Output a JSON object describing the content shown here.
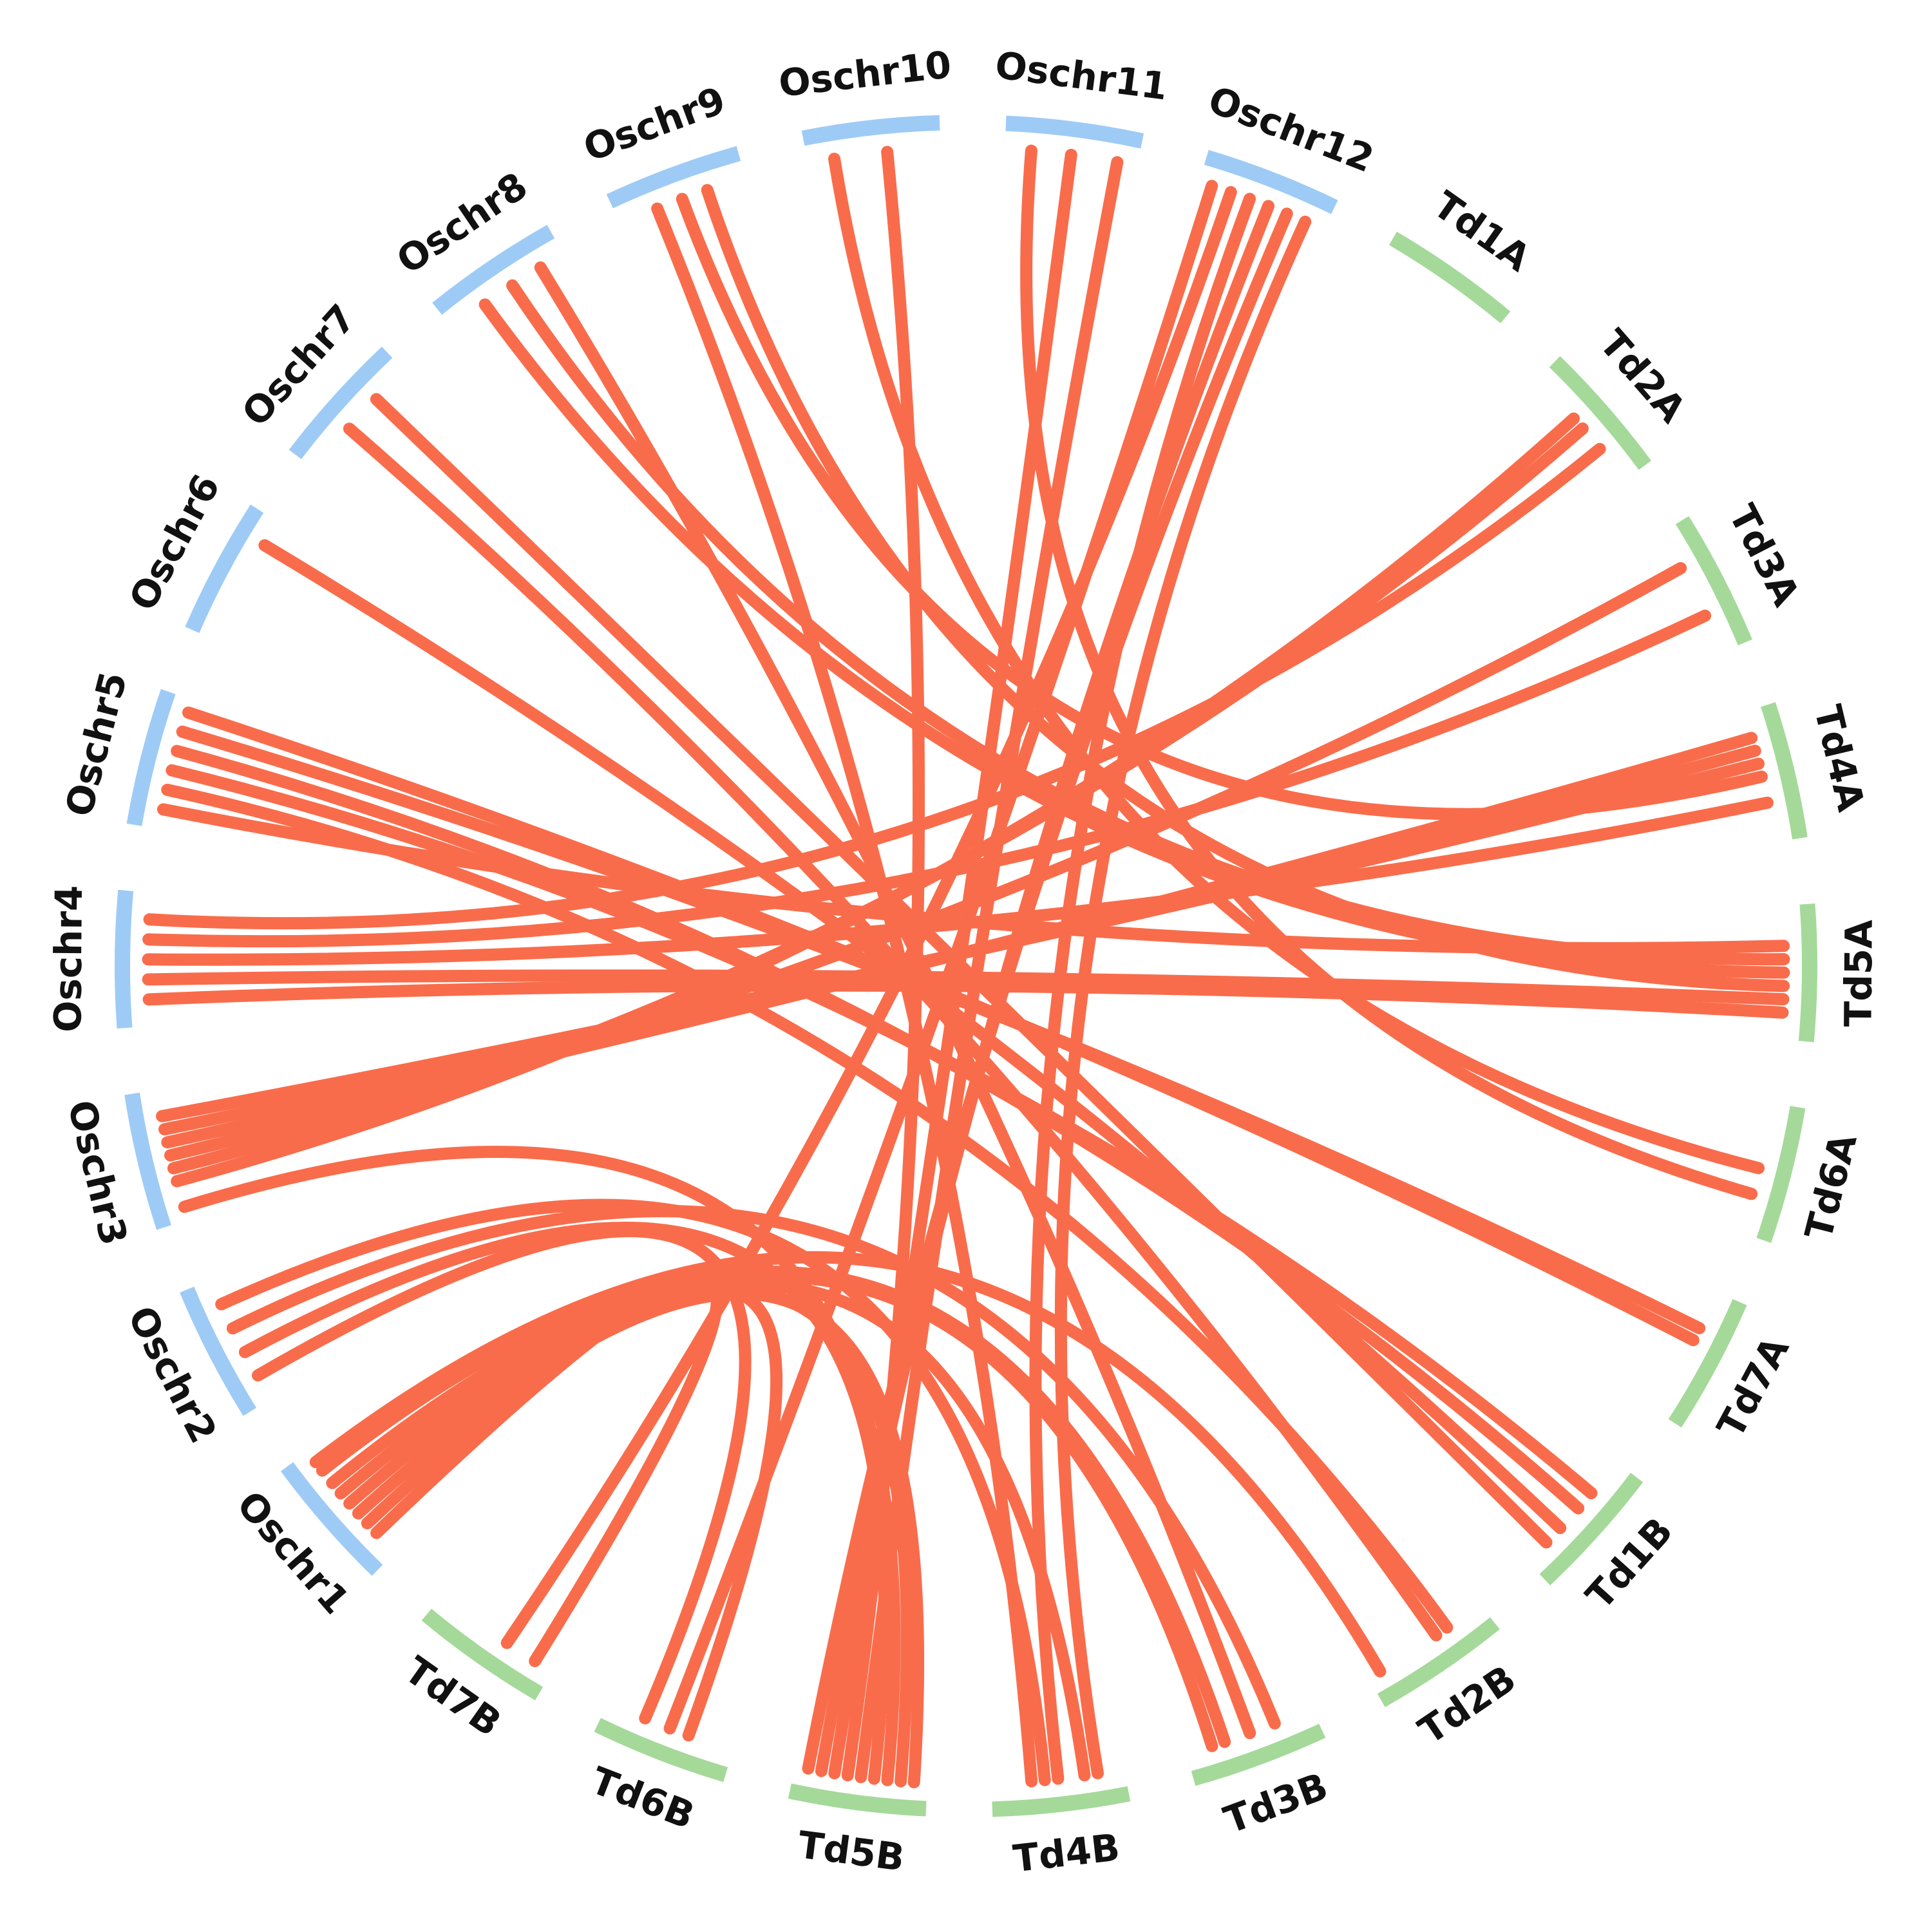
{
  "chart_data": {
    "type": "chord",
    "title": "",
    "colors": {
      "rice": "#9ecbf6",
      "wheat": "#a5d99a",
      "link": "#f96c4b"
    },
    "chromosomes": [
      {
        "name": "Oschr1",
        "group": "rice"
      },
      {
        "name": "Oschr2",
        "group": "rice"
      },
      {
        "name": "Oschr3",
        "group": "rice"
      },
      {
        "name": "Oschr4",
        "group": "rice"
      },
      {
        "name": "Oschr5",
        "group": "rice"
      },
      {
        "name": "Oschr6",
        "group": "rice"
      },
      {
        "name": "Oschr7",
        "group": "rice"
      },
      {
        "name": "Oschr8",
        "group": "rice"
      },
      {
        "name": "Oschr9",
        "group": "rice"
      },
      {
        "name": "Oschr10",
        "group": "rice"
      },
      {
        "name": "Oschr11",
        "group": "rice"
      },
      {
        "name": "Oschr12",
        "group": "rice"
      },
      {
        "name": "Td1A",
        "group": "wheat"
      },
      {
        "name": "Td2A",
        "group": "wheat"
      },
      {
        "name": "Td3A",
        "group": "wheat"
      },
      {
        "name": "Td4A",
        "group": "wheat"
      },
      {
        "name": "Td5A",
        "group": "wheat"
      },
      {
        "name": "Td6A",
        "group": "wheat"
      },
      {
        "name": "Td7A",
        "group": "wheat"
      },
      {
        "name": "Td1B",
        "group": "wheat"
      },
      {
        "name": "Td2B",
        "group": "wheat"
      },
      {
        "name": "Td3B",
        "group": "wheat"
      },
      {
        "name": "Td4B",
        "group": "wheat"
      },
      {
        "name": "Td5B",
        "group": "wheat"
      },
      {
        "name": "Td6B",
        "group": "wheat"
      },
      {
        "name": "Td7B",
        "group": "wheat"
      }
    ],
    "links": [
      [
        "Oschr1",
        0.2,
        "Td7B",
        0.15
      ],
      [
        "Oschr1",
        0.3,
        "Td6B",
        0.35
      ],
      [
        "Oschr1",
        0.4,
        "Td5B",
        0.1
      ],
      [
        "Oschr1",
        0.5,
        "Td5B",
        0.2
      ],
      [
        "Oschr1",
        0.6,
        "Td4B",
        0.3
      ],
      [
        "Oschr1",
        0.7,
        "Td3B",
        0.8
      ],
      [
        "Oschr1",
        0.82,
        "Td3B",
        0.7
      ],
      [
        "Oschr1",
        0.9,
        "Td2B",
        0.9
      ],
      [
        "Oschr2",
        0.2,
        "Td6B",
        0.7
      ],
      [
        "Oschr2",
        0.4,
        "Td5B",
        0.4
      ],
      [
        "Oschr2",
        0.6,
        "Td3B",
        0.3
      ],
      [
        "Oschr2",
        0.8,
        "Td4B",
        0.6
      ],
      [
        "Oschr3",
        0.1,
        "Td5B",
        0.3
      ],
      [
        "Oschr3",
        0.3,
        "Td2A",
        0.4
      ],
      [
        "Oschr3",
        0.4,
        "Td2A",
        0.5
      ],
      [
        "Oschr3",
        0.5,
        "Td3A",
        0.3
      ],
      [
        "Oschr3",
        0.6,
        "Td4A",
        0.2
      ],
      [
        "Oschr3",
        0.7,
        "Td4A",
        0.3
      ],
      [
        "Oschr3",
        0.8,
        "Td4A",
        0.4
      ],
      [
        "Oschr4",
        0.2,
        "Td5A",
        0.8
      ],
      [
        "Oschr4",
        0.35,
        "Td5A",
        0.7
      ],
      [
        "Oschr4",
        0.5,
        "Td4A",
        0.7
      ],
      [
        "Oschr4",
        0.65,
        "Td3A",
        0.7
      ],
      [
        "Oschr4",
        0.8,
        "Td2A",
        0.7
      ],
      [
        "Oschr5",
        0.15,
        "Td5A",
        0.3
      ],
      [
        "Oschr5",
        0.3,
        "Td2B",
        0.3
      ],
      [
        "Oschr5",
        0.45,
        "Td1B",
        0.3
      ],
      [
        "Oschr5",
        0.6,
        "Td1B",
        0.45
      ],
      [
        "Oschr5",
        0.75,
        "Td7A",
        0.3
      ],
      [
        "Oschr5",
        0.9,
        "Td7A",
        0.4
      ],
      [
        "Oschr6",
        0.8,
        "Td1B",
        0.65
      ],
      [
        "Oschr7",
        0.4,
        "Td2B",
        0.4
      ],
      [
        "Oschr7",
        0.7,
        "Td1B",
        0.8
      ],
      [
        "Oschr8",
        0.3,
        "Td5A",
        0.5
      ],
      [
        "Oschr8",
        0.55,
        "Td5A",
        0.4
      ],
      [
        "Oschr8",
        0.8,
        "Td3B",
        0.5
      ],
      [
        "Oschr9",
        0.3,
        "Td4B",
        0.7
      ],
      [
        "Oschr9",
        0.5,
        "Td4A",
        0.5
      ],
      [
        "Oschr9",
        0.7,
        "Td5A",
        0.6
      ],
      [
        "Oschr10",
        0.2,
        "Td6A",
        0.5
      ],
      [
        "Oschr10",
        0.6,
        "Td5B",
        0.6
      ],
      [
        "Oschr11",
        0.2,
        "Td6A",
        0.7
      ],
      [
        "Oschr11",
        0.5,
        "Td5B",
        0.7
      ],
      [
        "Oschr11",
        0.85,
        "Td5B",
        0.5
      ],
      [
        "Oschr12",
        0.1,
        "Td6B",
        0.5
      ],
      [
        "Oschr12",
        0.25,
        "Td7B",
        0.4
      ],
      [
        "Oschr12",
        0.4,
        "Td4B",
        0.5
      ],
      [
        "Oschr12",
        0.55,
        "Td5B",
        0.8
      ],
      [
        "Oschr12",
        0.7,
        "Td5B",
        0.9
      ],
      [
        "Oschr12",
        0.85,
        "Td4B",
        0.2
      ]
    ]
  }
}
